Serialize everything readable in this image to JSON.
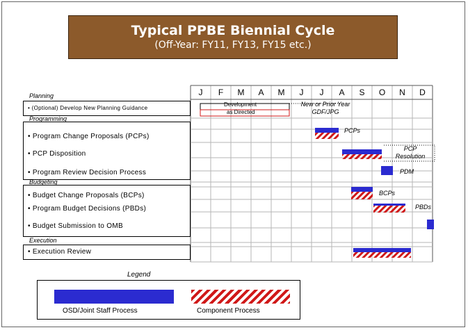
{
  "title": {
    "main": "Typical PPBE Biennial Cycle",
    "sub": "(Off-Year:  FY11, FY13, FY15 etc.)"
  },
  "months": [
    "J",
    "F",
    "M",
    "A",
    "M",
    "J",
    "J",
    "A",
    "S",
    "O",
    "N",
    "D"
  ],
  "sections": {
    "planning": "Planning",
    "programming": "Programming",
    "budgeting": "Budgeting",
    "execution": "Execution"
  },
  "tasks": {
    "planning_1": "• (Optional) Develop New Planning Guidance",
    "programming_1": "• Program Change Proposals (PCPs)",
    "programming_2": "• PCP Disposition",
    "programming_3": "• Program Review Decision Process",
    "budgeting_1": "• Budget Change Proposals (BCPs)",
    "budgeting_2": "• Program Budget Decisions (PBDs)",
    "budgeting_3": "• Budget Submission to OMB",
    "execution_1": "• Execution Review"
  },
  "annotations": {
    "development": "Development",
    "as_directed": "as Directed",
    "new_prior_year_1": "New or Prior Year",
    "new_prior_year_2": "GDF/JPG",
    "pcps": "PCPs",
    "pcp_resolution_1": "PCP",
    "pcp_resolution_2": "Resolution",
    "pdm": "PDM",
    "bcps": "BCPs",
    "pbds": "PBDs"
  },
  "legend": {
    "title": "Legend",
    "osd": "OSD/Joint Staff Process",
    "component": "Component Process"
  },
  "colors": {
    "title_bg": "#8c5a2b",
    "osd_blue": "#2b2bd0",
    "component_red": "#d01818",
    "grid_line": "#b5b5b5"
  }
}
